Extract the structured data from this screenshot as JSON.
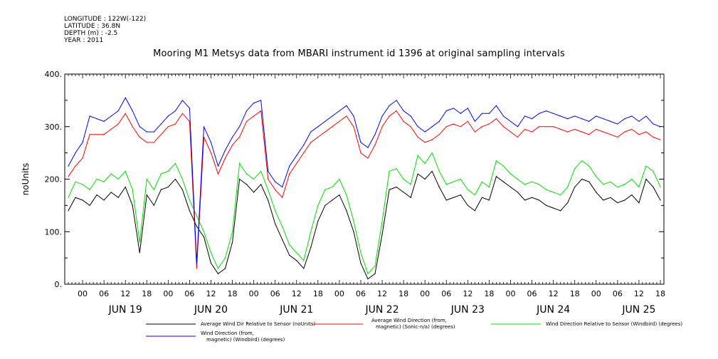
{
  "meta": {
    "longitude": "LONGITUDE : 122W(-122)",
    "latitude": "LATITUDE : 36.8N",
    "depth": "DEPTH (m) : -2.5",
    "year": "YEAR : 2011"
  },
  "chart_data": {
    "type": "line",
    "title": "Mooring M1 Metsys data from MBARI instrument id 1396 at original sampling intervals",
    "ylabel": "noUnits",
    "xlabel": "",
    "ylim": [
      0,
      400
    ],
    "y_ticks": [
      "0.",
      "100.",
      "200.",
      "300.",
      "400."
    ],
    "xlim_hours": [
      -5,
      163
    ],
    "hour_tick_labels": [
      "00",
      "06",
      "12",
      "18",
      "00",
      "06",
      "12",
      "18",
      "00",
      "06",
      "12",
      "18",
      "00",
      "06",
      "12",
      "18",
      "00",
      "06",
      "12",
      "18",
      "00",
      "06",
      "12",
      "18",
      "00",
      "06",
      "12",
      "18"
    ],
    "day_labels": [
      "JUN 19",
      "JUN 20",
      "JUN 21",
      "JUN 22",
      "JUN 23",
      "JUN 24",
      "JUN 25"
    ],
    "grid": false,
    "legend_position": "bottom",
    "series": [
      {
        "name": "Average Wind Dir Relative to Sensor (noUnits)",
        "color": "#000000",
        "x": [
          -4,
          -2,
          0,
          2,
          4,
          6,
          8,
          10,
          12,
          14,
          16,
          18,
          20,
          22,
          24,
          26,
          28,
          30,
          32,
          34,
          36,
          38,
          40,
          42,
          44,
          46,
          48,
          50,
          52,
          54,
          56,
          58,
          60,
          62,
          64,
          66,
          68,
          70,
          72,
          74,
          76,
          78,
          80,
          82,
          84,
          86,
          88,
          90,
          92,
          94,
          96,
          98,
          100,
          102,
          104,
          106,
          108,
          110,
          112,
          114,
          116,
          118,
          120,
          122,
          124,
          126,
          128,
          130,
          132,
          134,
          136,
          138,
          140,
          142,
          144,
          146,
          148,
          150,
          152,
          154,
          156,
          158,
          160,
          162
        ],
        "y": [
          140,
          165,
          160,
          150,
          170,
          160,
          175,
          165,
          185,
          150,
          60,
          170,
          150,
          180,
          185,
          200,
          180,
          140,
          110,
          90,
          40,
          20,
          30,
          80,
          200,
          190,
          175,
          190,
          160,
          115,
          85,
          55,
          45,
          30,
          70,
          120,
          150,
          160,
          170,
          140,
          100,
          40,
          10,
          20,
          95,
          180,
          185,
          175,
          165,
          210,
          200,
          215,
          185,
          160,
          165,
          170,
          150,
          140,
          165,
          160,
          205,
          195,
          185,
          175,
          160,
          165,
          160,
          150,
          145,
          140,
          155,
          185,
          200,
          195,
          175,
          160,
          165,
          155,
          160,
          170,
          155,
          200,
          185,
          160
        ]
      },
      {
        "name": "Average Wind Direction (from, magnetic) (Sonic-n/a) (degrees)",
        "color": "#ff0000",
        "x": [
          -4,
          -2,
          0,
          2,
          4,
          6,
          8,
          10,
          12,
          14,
          16,
          18,
          20,
          22,
          24,
          26,
          28,
          30,
          32,
          34,
          36,
          38,
          40,
          42,
          44,
          46,
          48,
          50,
          52,
          54,
          56,
          58,
          60,
          62,
          64,
          66,
          68,
          70,
          72,
          74,
          76,
          78,
          80,
          82,
          84,
          86,
          88,
          90,
          92,
          94,
          96,
          98,
          100,
          102,
          104,
          106,
          108,
          110,
          112,
          114,
          116,
          118,
          120,
          122,
          124,
          126,
          128,
          130,
          132,
          134,
          136,
          138,
          140,
          142,
          144,
          146,
          148,
          150,
          152,
          154,
          156,
          158,
          160,
          162
        ],
        "y": [
          205,
          225,
          240,
          285,
          285,
          285,
          295,
          305,
          325,
          300,
          280,
          270,
          270,
          285,
          300,
          305,
          325,
          310,
          30,
          280,
          250,
          210,
          240,
          265,
          280,
          310,
          320,
          330,
          200,
          180,
          165,
          210,
          230,
          250,
          270,
          280,
          290,
          300,
          310,
          320,
          300,
          250,
          240,
          265,
          300,
          320,
          330,
          310,
          300,
          280,
          270,
          275,
          285,
          300,
          305,
          300,
          310,
          290,
          300,
          305,
          315,
          300,
          290,
          280,
          295,
          290,
          300,
          300,
          300,
          295,
          290,
          295,
          290,
          285,
          295,
          290,
          285,
          280,
          290,
          295,
          285,
          290,
          280,
          275
        ]
      },
      {
        "name": "Wind Direction Relative to Sensor (Windbird) (degrees)",
        "color": "#00dd00",
        "x": [
          -4,
          -2,
          0,
          2,
          4,
          6,
          8,
          10,
          12,
          14,
          16,
          18,
          20,
          22,
          24,
          26,
          28,
          30,
          32,
          34,
          36,
          38,
          40,
          42,
          44,
          46,
          48,
          50,
          52,
          54,
          56,
          58,
          60,
          62,
          64,
          66,
          68,
          70,
          72,
          74,
          76,
          78,
          80,
          82,
          84,
          86,
          88,
          90,
          92,
          94,
          96,
          98,
          100,
          102,
          104,
          106,
          108,
          110,
          112,
          114,
          116,
          118,
          120,
          122,
          124,
          126,
          128,
          130,
          132,
          134,
          136,
          138,
          140,
          142,
          144,
          146,
          148,
          150,
          152,
          154,
          156,
          158,
          160,
          162
        ],
        "y": [
          165,
          195,
          190,
          180,
          200,
          195,
          210,
          200,
          215,
          180,
          80,
          200,
          180,
          210,
          215,
          230,
          200,
          160,
          130,
          100,
          60,
          30,
          50,
          100,
          230,
          210,
          200,
          215,
          180,
          140,
          110,
          75,
          60,
          45,
          100,
          150,
          180,
          185,
          200,
          170,
          120,
          60,
          20,
          35,
          120,
          215,
          220,
          200,
          190,
          245,
          230,
          250,
          215,
          190,
          195,
          200,
          180,
          170,
          195,
          185,
          235,
          225,
          210,
          200,
          190,
          195,
          190,
          180,
          175,
          170,
          185,
          220,
          235,
          225,
          205,
          190,
          195,
          185,
          190,
          200,
          185,
          225,
          215,
          185
        ]
      },
      {
        "name": "Wind Direction (from, magnetic) (Windbird) (degrees)",
        "color": "#0000ff",
        "x": [
          -4,
          -2,
          0,
          2,
          4,
          6,
          8,
          10,
          12,
          14,
          16,
          18,
          20,
          22,
          24,
          26,
          28,
          30,
          32,
          34,
          36,
          38,
          40,
          42,
          44,
          46,
          48,
          50,
          52,
          54,
          56,
          58,
          60,
          62,
          64,
          66,
          68,
          70,
          72,
          74,
          76,
          78,
          80,
          82,
          84,
          86,
          88,
          90,
          92,
          94,
          96,
          98,
          100,
          102,
          104,
          106,
          108,
          110,
          112,
          114,
          116,
          118,
          120,
          122,
          124,
          126,
          128,
          130,
          132,
          134,
          136,
          138,
          140,
          142,
          144,
          146,
          148,
          150,
          152,
          154,
          156,
          158,
          160,
          162
        ],
        "y": [
          225,
          250,
          270,
          320,
          315,
          310,
          320,
          330,
          355,
          330,
          300,
          290,
          290,
          305,
          320,
          330,
          350,
          335,
          40,
          300,
          270,
          225,
          255,
          280,
          300,
          330,
          345,
          350,
          215,
          195,
          185,
          225,
          245,
          265,
          290,
          300,
          310,
          320,
          330,
          340,
          320,
          270,
          260,
          285,
          320,
          340,
          350,
          330,
          320,
          300,
          290,
          300,
          310,
          330,
          335,
          325,
          335,
          310,
          325,
          325,
          340,
          320,
          310,
          300,
          320,
          315,
          325,
          330,
          325,
          320,
          315,
          320,
          315,
          310,
          320,
          315,
          310,
          305,
          315,
          320,
          310,
          320,
          305,
          300
        ]
      }
    ]
  },
  "legend": [
    {
      "label_lines": [
        "Average Wind Dir Relative to Sensor (noUnits)"
      ],
      "color": "#000000"
    },
    {
      "label_lines": [
        "Average Wind Direction (from,",
        "magnetic) (Sonic-n/a) (degrees)"
      ],
      "color": "#ff0000"
    },
    {
      "label_lines": [
        "Wind Direction Relative to Sensor (Windbird) (degrees)"
      ],
      "color": "#00dd00"
    },
    {
      "label_lines": [
        "Wind Direction (from,",
        "magnetic) (Windbird) (degrees)"
      ],
      "color": "#0000ff"
    }
  ]
}
